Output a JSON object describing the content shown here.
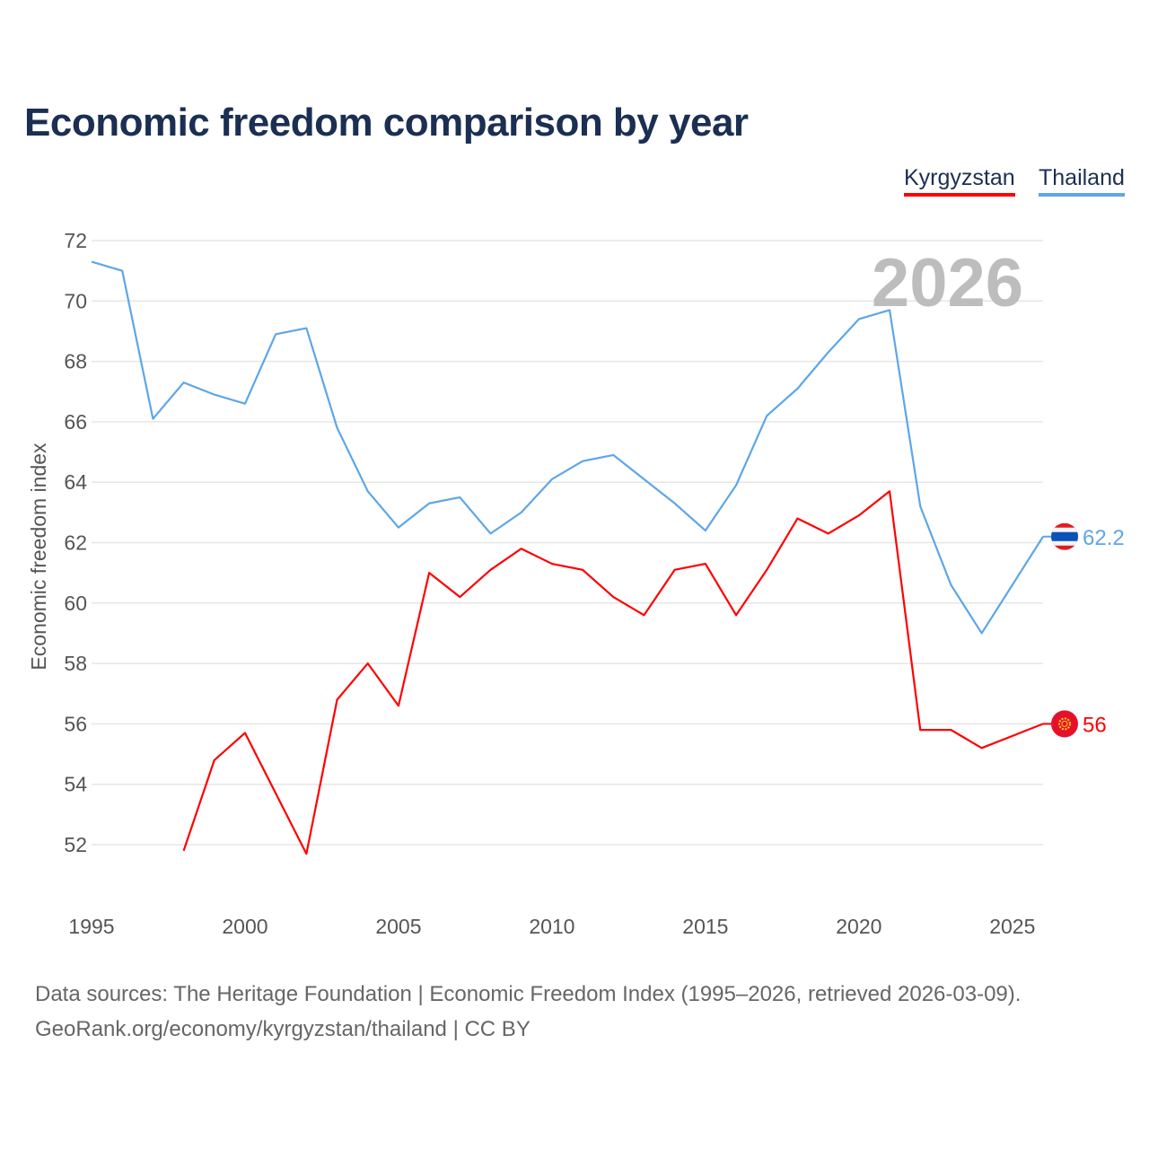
{
  "title": "Economic freedom comparison by year",
  "legend": [
    "Kyrgyzstan",
    "Thailand"
  ],
  "footer": {
    "line1": "Data sources: The Heritage Foundation | Economic Freedom Index (1995–2026, retrieved 2026-03-09).",
    "line2": "GeoRank.org/economy/kyrgyzstan/thailand | CC BY"
  },
  "chart_data": {
    "type": "line",
    "title": "Economic freedom comparison by year",
    "ylabel": "Economic freedom index",
    "xlabel": "",
    "year_watermark": "2026",
    "xlim": [
      1995,
      2026
    ],
    "ylim": [
      50.5,
      72
    ],
    "xticks": [
      1995,
      2000,
      2005,
      2010,
      2015,
      2020,
      2025
    ],
    "yticks": [
      52,
      54,
      56,
      58,
      60,
      62,
      64,
      66,
      68,
      70,
      72
    ],
    "grid": true,
    "legend_position": "top-right",
    "series": [
      {
        "name": "Kyrgyzstan",
        "color": "#ff0000",
        "flag": "kyrgyzstan-flag",
        "end_label": "56",
        "x": [
          1998,
          1999,
          2000,
          2001,
          2002,
          2003,
          2004,
          2005,
          2006,
          2007,
          2008,
          2009,
          2010,
          2011,
          2012,
          2013,
          2014,
          2015,
          2016,
          2017,
          2018,
          2019,
          2020,
          2021,
          2022,
          2023,
          2024,
          2025,
          2026
        ],
        "values": [
          51.8,
          54.8,
          55.7,
          53.7,
          51.7,
          56.8,
          58.0,
          56.6,
          61.0,
          60.2,
          61.1,
          61.8,
          61.3,
          61.1,
          60.2,
          59.6,
          61.1,
          61.3,
          59.6,
          61.1,
          62.8,
          62.3,
          62.9,
          63.7,
          55.8,
          55.8,
          55.2,
          55.6,
          56.0
        ]
      },
      {
        "name": "Thailand",
        "color": "#5da6e8",
        "flag": "thailand-flag",
        "end_label": "62.2",
        "x": [
          1995,
          1996,
          1997,
          1998,
          1999,
          2000,
          2001,
          2002,
          2003,
          2004,
          2005,
          2006,
          2007,
          2008,
          2009,
          2010,
          2011,
          2012,
          2013,
          2014,
          2015,
          2016,
          2017,
          2018,
          2019,
          2020,
          2021,
          2022,
          2023,
          2024,
          2025,
          2026
        ],
        "values": [
          71.3,
          71.0,
          66.1,
          67.3,
          66.9,
          66.6,
          68.9,
          69.1,
          65.8,
          63.7,
          62.5,
          63.3,
          63.5,
          62.3,
          63.0,
          64.1,
          64.7,
          64.9,
          64.1,
          63.3,
          62.4,
          63.9,
          66.2,
          67.1,
          68.3,
          69.4,
          69.7,
          63.2,
          60.6,
          59.0,
          60.6,
          62.2
        ]
      }
    ]
  }
}
